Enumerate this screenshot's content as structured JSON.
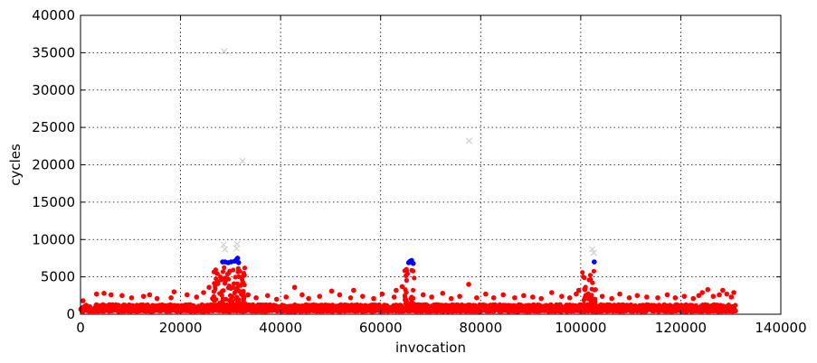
{
  "chart_data": {
    "type": "scatter",
    "xlabel": "invocation",
    "ylabel": "cycles",
    "xlim": [
      0,
      140000
    ],
    "ylim": [
      0,
      40000
    ],
    "x_ticks": [
      0,
      20000,
      40000,
      60000,
      80000,
      100000,
      120000,
      140000
    ],
    "y_ticks": [
      0,
      5000,
      10000,
      15000,
      20000,
      25000,
      30000,
      35000,
      40000
    ],
    "grid": true,
    "colors": {
      "red": "#ff0000",
      "blue": "#0000ff",
      "outlier": "#d0d0d0"
    },
    "series": [
      {
        "marker": "dot",
        "color": "#ff0000",
        "points": [
          [
            500,
            1800
          ],
          [
            3200,
            2700
          ],
          [
            4700,
            2800
          ],
          [
            6100,
            2600
          ],
          [
            8300,
            2500
          ],
          [
            10200,
            2200
          ],
          [
            12600,
            2400
          ],
          [
            13800,
            2600
          ],
          [
            15300,
            2100
          ],
          [
            18100,
            2200
          ],
          [
            18700,
            3000
          ],
          [
            21300,
            2600
          ],
          [
            23200,
            2300
          ],
          [
            24600,
            2900
          ],
          [
            25700,
            3600
          ],
          [
            26400,
            2100
          ],
          [
            33500,
            2600
          ],
          [
            35100,
            2200
          ],
          [
            37400,
            2500
          ],
          [
            39200,
            2000
          ],
          [
            41100,
            2300
          ],
          [
            42800,
            3600
          ],
          [
            44300,
            2600
          ],
          [
            45600,
            2100
          ],
          [
            47800,
            2400
          ],
          [
            50200,
            3100
          ],
          [
            51800,
            2600
          ],
          [
            54000,
            2200
          ],
          [
            54600,
            3200
          ],
          [
            56400,
            2400
          ],
          [
            58600,
            2100
          ],
          [
            60300,
            2700
          ],
          [
            62700,
            2300
          ],
          [
            63100,
            3200
          ],
          [
            64300,
            3700
          ],
          [
            68500,
            2600
          ],
          [
            70200,
            2300
          ],
          [
            72400,
            2800
          ],
          [
            74100,
            2100
          ],
          [
            75800,
            2400
          ],
          [
            77600,
            4000
          ],
          [
            79200,
            2200
          ],
          [
            81000,
            2700
          ],
          [
            82600,
            2200
          ],
          [
            84500,
            2600
          ],
          [
            86800,
            2200
          ],
          [
            88600,
            2500
          ],
          [
            90400,
            2300
          ],
          [
            92100,
            2100
          ],
          [
            94200,
            2900
          ],
          [
            96200,
            2400
          ],
          [
            97800,
            2200
          ],
          [
            99100,
            2700
          ],
          [
            99600,
            3200
          ],
          [
            104300,
            2400
          ],
          [
            106200,
            2100
          ],
          [
            107800,
            2700
          ],
          [
            109700,
            2200
          ],
          [
            111300,
            2500
          ],
          [
            113200,
            2300
          ],
          [
            115400,
            2200
          ],
          [
            117300,
            2600
          ],
          [
            118900,
            2200
          ],
          [
            120700,
            2400
          ],
          [
            122500,
            2100
          ],
          [
            123600,
            2500
          ],
          [
            124300,
            2900
          ],
          [
            125400,
            3300
          ],
          [
            126500,
            2400
          ],
          [
            127700,
            2600
          ],
          [
            128400,
            3200
          ],
          [
            129200,
            2700
          ],
          [
            130100,
            2300
          ],
          [
            130600,
            2900
          ]
        ],
        "bands": [
          {
            "x_range": [
              0,
              131000
            ],
            "y_range": [
              400,
              1300
            ]
          },
          {
            "x_range": [
              26500,
              33000
            ],
            "y_range": [
              1300,
              6300
            ]
          },
          {
            "x_range": [
              64800,
              66800
            ],
            "y_range": [
              1300,
              6200
            ]
          },
          {
            "x_range": [
              100300,
              103000
            ],
            "y_range": [
              1300,
              6000
            ]
          }
        ]
      },
      {
        "marker": "dot",
        "color": "#0000ff",
        "points": [
          [
            28400,
            7000
          ],
          [
            28900,
            7000
          ],
          [
            29500,
            6900
          ],
          [
            30100,
            7000
          ],
          [
            30800,
            7100
          ],
          [
            31200,
            7300
          ],
          [
            31400,
            7500
          ],
          [
            31600,
            6900
          ],
          [
            65600,
            6900
          ],
          [
            65900,
            7100
          ],
          [
            66200,
            7200
          ],
          [
            66500,
            6800
          ],
          [
            102700,
            7000
          ]
        ]
      },
      {
        "marker": "x",
        "color": "#d0d0d0",
        "points": [
          [
            28700,
            35200
          ],
          [
            28600,
            9300
          ],
          [
            28900,
            8700
          ],
          [
            31300,
            9400
          ],
          [
            32400,
            20500
          ],
          [
            31200,
            8800
          ],
          [
            77700,
            23200
          ],
          [
            102300,
            8700
          ],
          [
            102600,
            8200
          ]
        ]
      }
    ]
  }
}
